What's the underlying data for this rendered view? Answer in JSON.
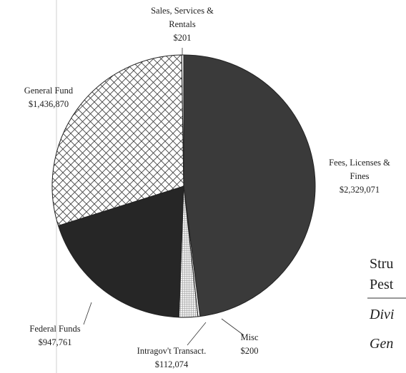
{
  "chart_data": {
    "type": "pie",
    "title": "",
    "slices": [
      {
        "label_lines": [
          "Fees, Licenses &",
          "Fines"
        ],
        "value_text": "$2,329,071",
        "value": 2329071,
        "fill": "#3a3a3a",
        "pattern": "solid-dark"
      },
      {
        "label_lines": [
          "Misc"
        ],
        "value_text": "$200",
        "value": 200,
        "fill": "#ffffff",
        "pattern": "none"
      },
      {
        "label_lines": [
          "Intragov't Transact."
        ],
        "value_text": "$112,074",
        "value": 112074,
        "fill": "#e6e6e6",
        "pattern": "fine-grid"
      },
      {
        "label_lines": [
          "Federal Funds"
        ],
        "value_text": "$947,761",
        "value": 947761,
        "fill": "#262626",
        "pattern": "solid-darker"
      },
      {
        "label_lines": [
          "General Fund"
        ],
        "value_text": "$1,436,870",
        "value": 1436870,
        "fill": "#ffffff",
        "pattern": "crosshatch"
      },
      {
        "label_lines": [
          "Sales, Services &",
          "Rentals"
        ],
        "value_text": "$201",
        "value": 201,
        "fill": "#ffffff",
        "pattern": "none"
      }
    ]
  },
  "side_text": {
    "line1": "Stru",
    "line2": "Pest",
    "line3": "Divi",
    "line4": "Gen"
  }
}
